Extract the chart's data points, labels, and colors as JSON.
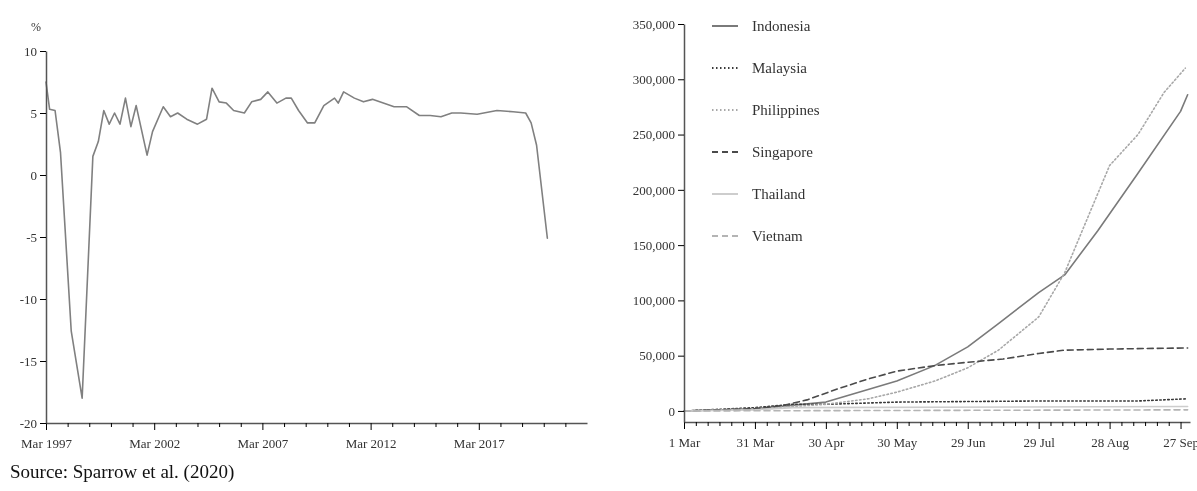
{
  "chart_data": [
    {
      "type": "line",
      "ylabel": "%",
      "annotations": [
        "Source: Sparrow et al. (2020)"
      ],
      "grid": false,
      "legend": false,
      "marker": "none",
      "line_style": "solid",
      "xlim": [
        "1997-03",
        "2022-03"
      ],
      "ylim": [
        -20,
        10
      ],
      "yticks": [
        10,
        5,
        0,
        -5,
        -10,
        -15,
        -20
      ],
      "xticks": [
        {
          "value": "1997-03",
          "label": "Mar 1997"
        },
        {
          "value": "1998-03",
          "label": null
        },
        {
          "value": "1999-03",
          "label": null
        },
        {
          "value": "2000-03",
          "label": null
        },
        {
          "value": "2001-03",
          "label": null
        },
        {
          "value": "2002-03",
          "label": "Mar 2002"
        },
        {
          "value": "2003-03",
          "label": null
        },
        {
          "value": "2004-03",
          "label": null
        },
        {
          "value": "2005-03",
          "label": null
        },
        {
          "value": "2006-03",
          "label": null
        },
        {
          "value": "2007-03",
          "label": "Mar 2007"
        },
        {
          "value": "2008-03",
          "label": null
        },
        {
          "value": "2009-03",
          "label": null
        },
        {
          "value": "2010-03",
          "label": null
        },
        {
          "value": "2011-03",
          "label": null
        },
        {
          "value": "2012-03",
          "label": "Mar 2012"
        },
        {
          "value": "2013-03",
          "label": null
        },
        {
          "value": "2014-03",
          "label": null
        },
        {
          "value": "2015-03",
          "label": null
        },
        {
          "value": "2016-03",
          "label": null
        },
        {
          "value": "2017-03",
          "label": "Mar 2017"
        },
        {
          "value": "2018-03",
          "label": null
        },
        {
          "value": "2019-03",
          "label": null
        },
        {
          "value": "2020-03",
          "label": null
        },
        {
          "value": "2021-03",
          "label": null
        }
      ],
      "x": [
        "1997-03",
        "1997-05",
        "1997-08",
        "1997-11",
        "1998-05",
        "1998-11",
        "1999-05",
        "1999-08",
        "1999-11",
        "2000-02",
        "2000-05",
        "2000-08",
        "2000-11",
        "2001-02",
        "2001-05",
        "2001-11",
        "2002-02",
        "2002-08",
        "2002-12",
        "2003-04",
        "2003-09",
        "2004-03",
        "2004-08",
        "2004-11",
        "2005-03",
        "2005-07",
        "2005-11",
        "2006-05",
        "2006-09",
        "2007-02",
        "2007-06",
        "2007-11",
        "2008-04",
        "2008-07",
        "2008-11",
        "2009-04",
        "2009-08",
        "2010-01",
        "2010-07",
        "2010-09",
        "2010-12",
        "2011-06",
        "2011-11",
        "2012-04",
        "2012-10",
        "2013-04",
        "2013-11",
        "2014-06",
        "2014-12",
        "2015-06",
        "2015-12",
        "2016-05",
        "2017-02",
        "2018-01",
        "2018-10",
        "2019-05",
        "2019-08",
        "2019-11",
        "2020-05"
      ],
      "series": [
        {
          "color": "#808080",
          "values": [
            7.5,
            5.3,
            5.2,
            1.8,
            -12.6,
            -18,
            1.5,
            2.7,
            5.2,
            4.1,
            5,
            4.1,
            6.2,
            3.9,
            5.6,
            1.6,
            3.5,
            5.5,
            4.7,
            5,
            4.5,
            4.1,
            4.5,
            7,
            5.9,
            5.8,
            5.2,
            5,
            5.9,
            6.1,
            6.7,
            5.8,
            6.2,
            6.2,
            5.2,
            4.2,
            4.2,
            5.6,
            6.2,
            5.8,
            6.7,
            6.2,
            5.9,
            6.1,
            5.8,
            5.5,
            5.5,
            4.8,
            4.8,
            4.7,
            5,
            5,
            4.9,
            5.2,
            5.1,
            5,
            4.2,
            2.4,
            -5.1
          ]
        }
      ]
    },
    {
      "type": "line",
      "grid": false,
      "legend": "top left",
      "marker": "none",
      "xlim": [
        "--03-01",
        "--10-01"
      ],
      "ylim": [
        -10000,
        350000
      ],
      "yticks": [
        {
          "value": 0,
          "label": "0"
        },
        {
          "value": 50000,
          "label": "50,000"
        },
        {
          "value": 100000,
          "label": "100,000"
        },
        {
          "value": 150000,
          "label": "150,000"
        },
        {
          "value": 200000,
          "label": "200,000"
        },
        {
          "value": 250000,
          "label": "250,000"
        },
        {
          "value": 300000,
          "label": "300,000"
        },
        {
          "value": 350000,
          "label": "350,000"
        }
      ],
      "xticks": [
        {
          "value": "--03-01",
          "label": "1 Mar"
        },
        {
          "value": "--03-06",
          "label": null
        },
        {
          "value": "--03-11",
          "label": null
        },
        {
          "value": "--03-16",
          "label": null
        },
        {
          "value": "--03-21",
          "label": null
        },
        {
          "value": "--03-26",
          "label": null
        },
        {
          "value": "--03-31",
          "label": "31 Mar"
        },
        {
          "value": "--04-05",
          "label": null
        },
        {
          "value": "--04-10",
          "label": null
        },
        {
          "value": "--04-15",
          "label": null
        },
        {
          "value": "--04-20",
          "label": null
        },
        {
          "value": "--04-25",
          "label": null
        },
        {
          "value": "--04-30",
          "label": "30 Apr"
        },
        {
          "value": "--05-05",
          "label": null
        },
        {
          "value": "--05-10",
          "label": null
        },
        {
          "value": "--05-15",
          "label": null
        },
        {
          "value": "--05-20",
          "label": null
        },
        {
          "value": "--05-25",
          "label": null
        },
        {
          "value": "--05-30",
          "label": "30 May"
        },
        {
          "value": "--06-04",
          "label": null
        },
        {
          "value": "--06-09",
          "label": null
        },
        {
          "value": "--06-14",
          "label": null
        },
        {
          "value": "--06-19",
          "label": null
        },
        {
          "value": "--06-24",
          "label": null
        },
        {
          "value": "--06-29",
          "label": "29 Jun"
        },
        {
          "value": "--07-04",
          "label": null
        },
        {
          "value": "--07-09",
          "label": null
        },
        {
          "value": "--07-14",
          "label": null
        },
        {
          "value": "--07-19",
          "label": null
        },
        {
          "value": "--07-24",
          "label": null
        },
        {
          "value": "--07-29",
          "label": "29 Jul"
        },
        {
          "value": "--08-03",
          "label": null
        },
        {
          "value": "--08-08",
          "label": null
        },
        {
          "value": "--08-13",
          "label": null
        },
        {
          "value": "--08-18",
          "label": null
        },
        {
          "value": "--08-23",
          "label": null
        },
        {
          "value": "--08-28",
          "label": "28 Aug"
        },
        {
          "value": "--09-02",
          "label": null
        },
        {
          "value": "--09-07",
          "label": null
        },
        {
          "value": "--09-12",
          "label": null
        },
        {
          "value": "--09-17",
          "label": null
        },
        {
          "value": "--09-22",
          "label": null
        },
        {
          "value": "--09-27",
          "label": "27 Sep"
        }
      ],
      "series": [
        {
          "name": "Indonesia",
          "color": "#7a7a7a",
          "line_style": "solid",
          "x": [
            "--03-01",
            "--03-31",
            "--04-30",
            "--05-30",
            "--06-15",
            "--06-29",
            "--07-12",
            "--07-29",
            "--08-09",
            "--08-23",
            "--09-09",
            "--09-27",
            "--09-30"
          ],
          "values": [
            0,
            2000,
            8000,
            27000,
            41000,
            58000,
            79000,
            107000,
            123000,
            163000,
            215000,
            271000,
            286000
          ]
        },
        {
          "name": "Malaysia",
          "color": "#3a3a3a",
          "line_style": "dotted",
          "x": [
            "--03-01",
            "--03-31",
            "--04-16",
            "--04-30",
            "--05-30",
            "--07-29",
            "--09-09",
            "--09-30"
          ],
          "values": [
            0,
            3000,
            6000,
            6000,
            8000,
            9000,
            9000,
            11000
          ]
        },
        {
          "name": "Philippines",
          "color": "#a8a8a8",
          "line_style": "dotted",
          "x": [
            "--03-01",
            "--03-31",
            "--04-30",
            "--05-18",
            "--05-30",
            "--06-15",
            "--06-29",
            "--07-12",
            "--07-29",
            "--08-09",
            "--08-17",
            "--08-28",
            "--09-09",
            "--09-20",
            "--09-29"
          ],
          "values": [
            0,
            2000,
            6000,
            11000,
            17000,
            27000,
            39000,
            55000,
            85000,
            125000,
            166000,
            222000,
            250000,
            288000,
            310000
          ]
        },
        {
          "name": "Singapore",
          "color": "#4a4a4a",
          "line_style": "dashed",
          "x": [
            "--03-01",
            "--03-31",
            "--04-12",
            "--04-22",
            "--05-05",
            "--05-18",
            "--05-30",
            "--06-15",
            "--06-29",
            "--07-14",
            "--07-29",
            "--08-09",
            "--08-28",
            "--09-30"
          ],
          "values": [
            0,
            2000,
            5000,
            10000,
            20000,
            29000,
            36000,
            41000,
            44000,
            47000,
            52000,
            55000,
            56000,
            57000
          ]
        },
        {
          "name": "Thailand",
          "color": "#cdcdcd",
          "line_style": "solid",
          "x": [
            "--03-01",
            "--03-31",
            "--04-16",
            "--09-30"
          ],
          "values": [
            0,
            1000,
            3000,
            4000
          ]
        },
        {
          "name": "Vietnam",
          "color": "#b4b4b4",
          "line_style": "dashed",
          "x": [
            "--03-01",
            "--09-30"
          ],
          "values": [
            0,
            1000
          ]
        }
      ]
    }
  ]
}
